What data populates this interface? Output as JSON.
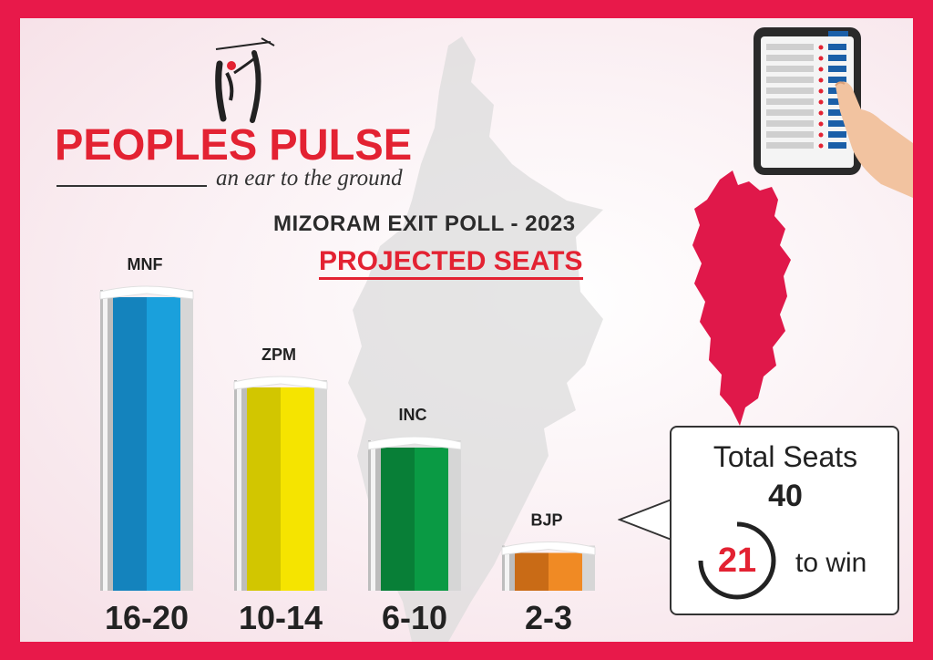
{
  "brand": {
    "name": "PEOPLES PULSE",
    "tagline": "an ear to the ground"
  },
  "header": {
    "title": "MIZORAM EXIT POLL - 2023",
    "subtitle": "PROJECTED SEATS"
  },
  "chart_data": {
    "type": "bar",
    "title": "MIZORAM EXIT POLL - 2023",
    "subtitle": "PROJECTED SEATS",
    "categories": [
      "MNF",
      "ZPM",
      "INC",
      "BJP"
    ],
    "ranges": [
      [
        16,
        20
      ],
      [
        10,
        14
      ],
      [
        6,
        10
      ],
      [
        2,
        3
      ]
    ],
    "value_labels": [
      "16-20",
      "10-14",
      "6-10",
      "2-3"
    ],
    "colors": [
      "#1aa0dc",
      "#f5e400",
      "#0a9a44",
      "#f08a24"
    ],
    "dark_colors": [
      "#1483bd",
      "#d2c600",
      "#087f37",
      "#c96b16"
    ],
    "ylim": [
      0,
      20
    ],
    "grid": false,
    "legend": "none"
  },
  "summary": {
    "total_label": "Total Seats",
    "total_value": "40",
    "win_value": "21",
    "win_label": "to win"
  },
  "colors": {
    "frame": "#e8194a",
    "brand_red": "#e32232",
    "map_red": "#e0184a"
  },
  "icons": [
    "peoples-pulse-logo-icon",
    "evm-machine-icon",
    "mizoram-map-icon"
  ]
}
